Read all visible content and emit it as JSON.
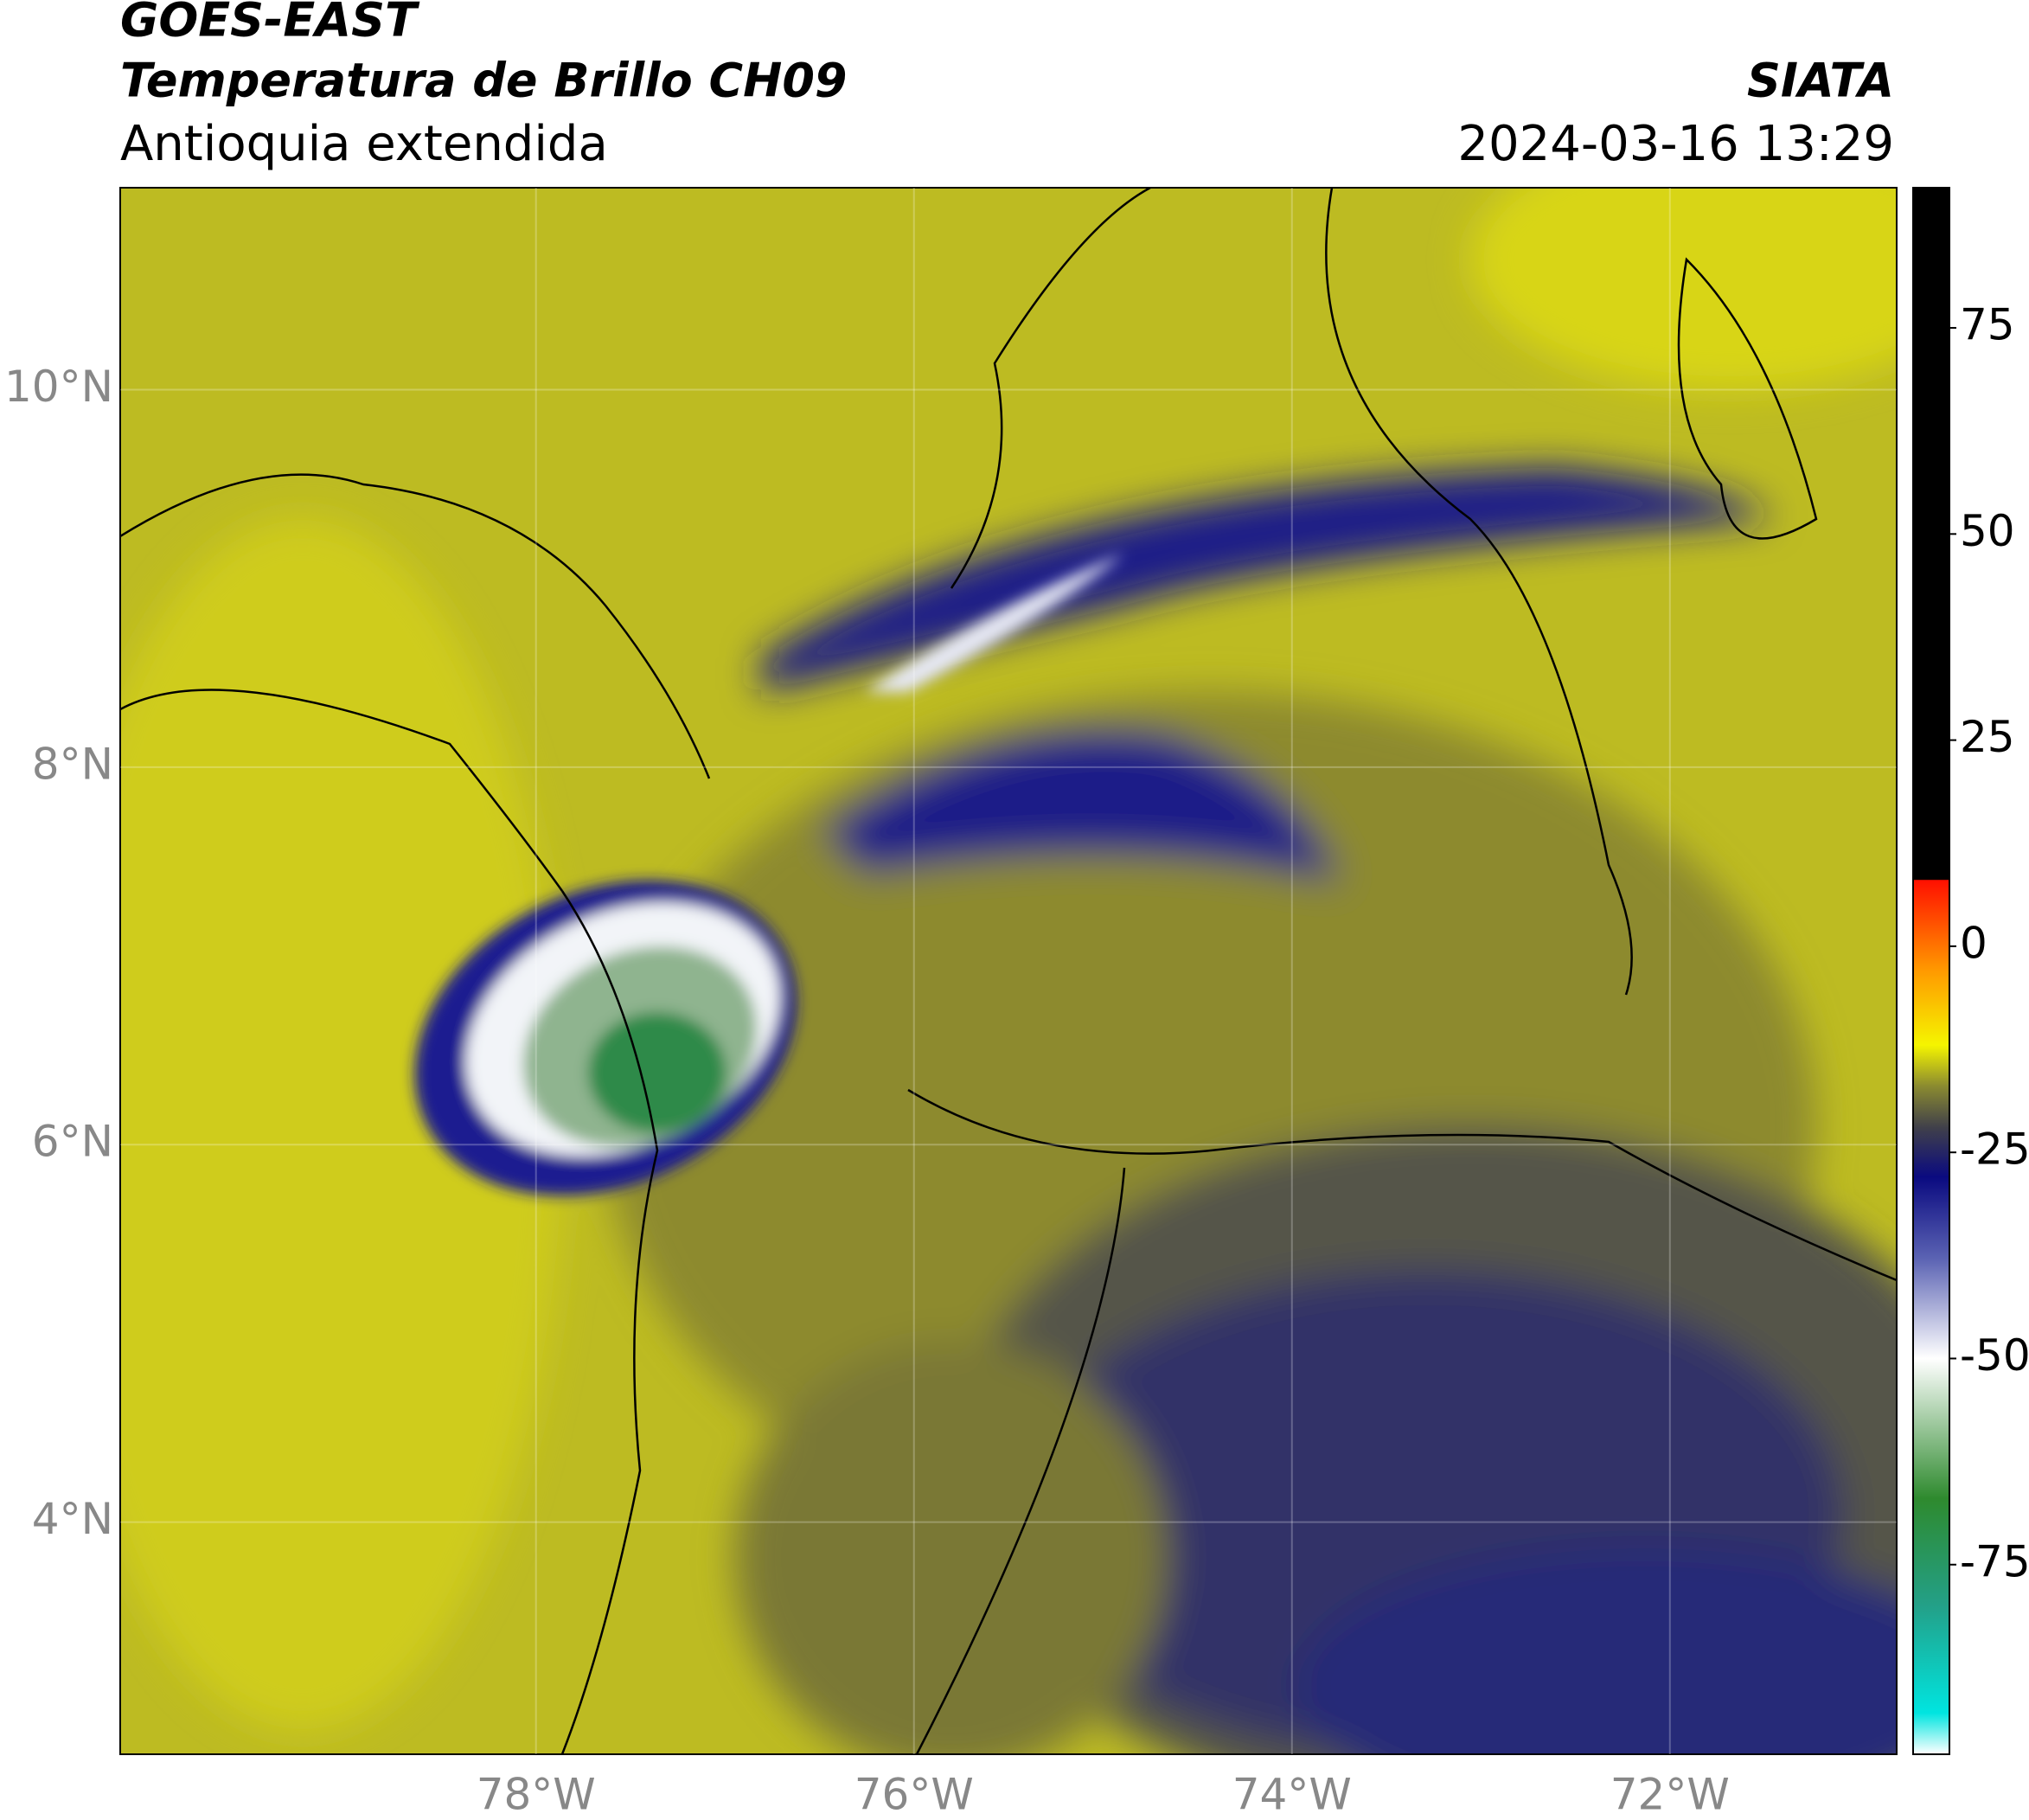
{
  "header": {
    "title": "GOES-EAST",
    "subtitle": "Temperatura de Brillo CH09",
    "region": "Antioquia extendida",
    "source": "SIATA",
    "datetime": "2024-03-16 13:29"
  },
  "map": {
    "lon_range": [
      -80.2,
      -70.8
    ],
    "lat_range": [
      2.77,
      11.07
    ],
    "lon_ticks": [
      {
        "value": -78,
        "label": "78°W"
      },
      {
        "value": -76,
        "label": "76°W"
      },
      {
        "value": -74,
        "label": "74°W"
      },
      {
        "value": -72,
        "label": "72°W"
      }
    ],
    "lat_ticks": [
      {
        "value": 4,
        "label": "4°N"
      },
      {
        "value": 6,
        "label": "6°N"
      },
      {
        "value": 8,
        "label": "8°N"
      },
      {
        "value": 10,
        "label": "10°N"
      }
    ],
    "grid": true
  },
  "colorbar": {
    "range": [
      -98,
      92
    ],
    "ticks": [
      -75,
      -50,
      -25,
      0,
      25,
      50,
      75
    ],
    "stops": [
      {
        "value": -98,
        "color": "#ffffff"
      },
      {
        "value": -93,
        "color": "#00e5e0"
      },
      {
        "value": -80,
        "color": "#23a088"
      },
      {
        "value": -67,
        "color": "#2e8a2e"
      },
      {
        "value": -50,
        "color": "#ffffff"
      },
      {
        "value": -38,
        "color": "#5c64b4"
      },
      {
        "value": -28,
        "color": "#0a0a80"
      },
      {
        "value": -22,
        "color": "#40404a"
      },
      {
        "value": -17,
        "color": "#8a8a30"
      },
      {
        "value": -12,
        "color": "#f5f500"
      },
      {
        "value": -3,
        "color": "#ff9a00"
      },
      {
        "value": 8,
        "color": "#ff1000"
      },
      {
        "value": 8.1,
        "color": "#000000"
      },
      {
        "value": 92,
        "color": "#000000"
      }
    ]
  }
}
